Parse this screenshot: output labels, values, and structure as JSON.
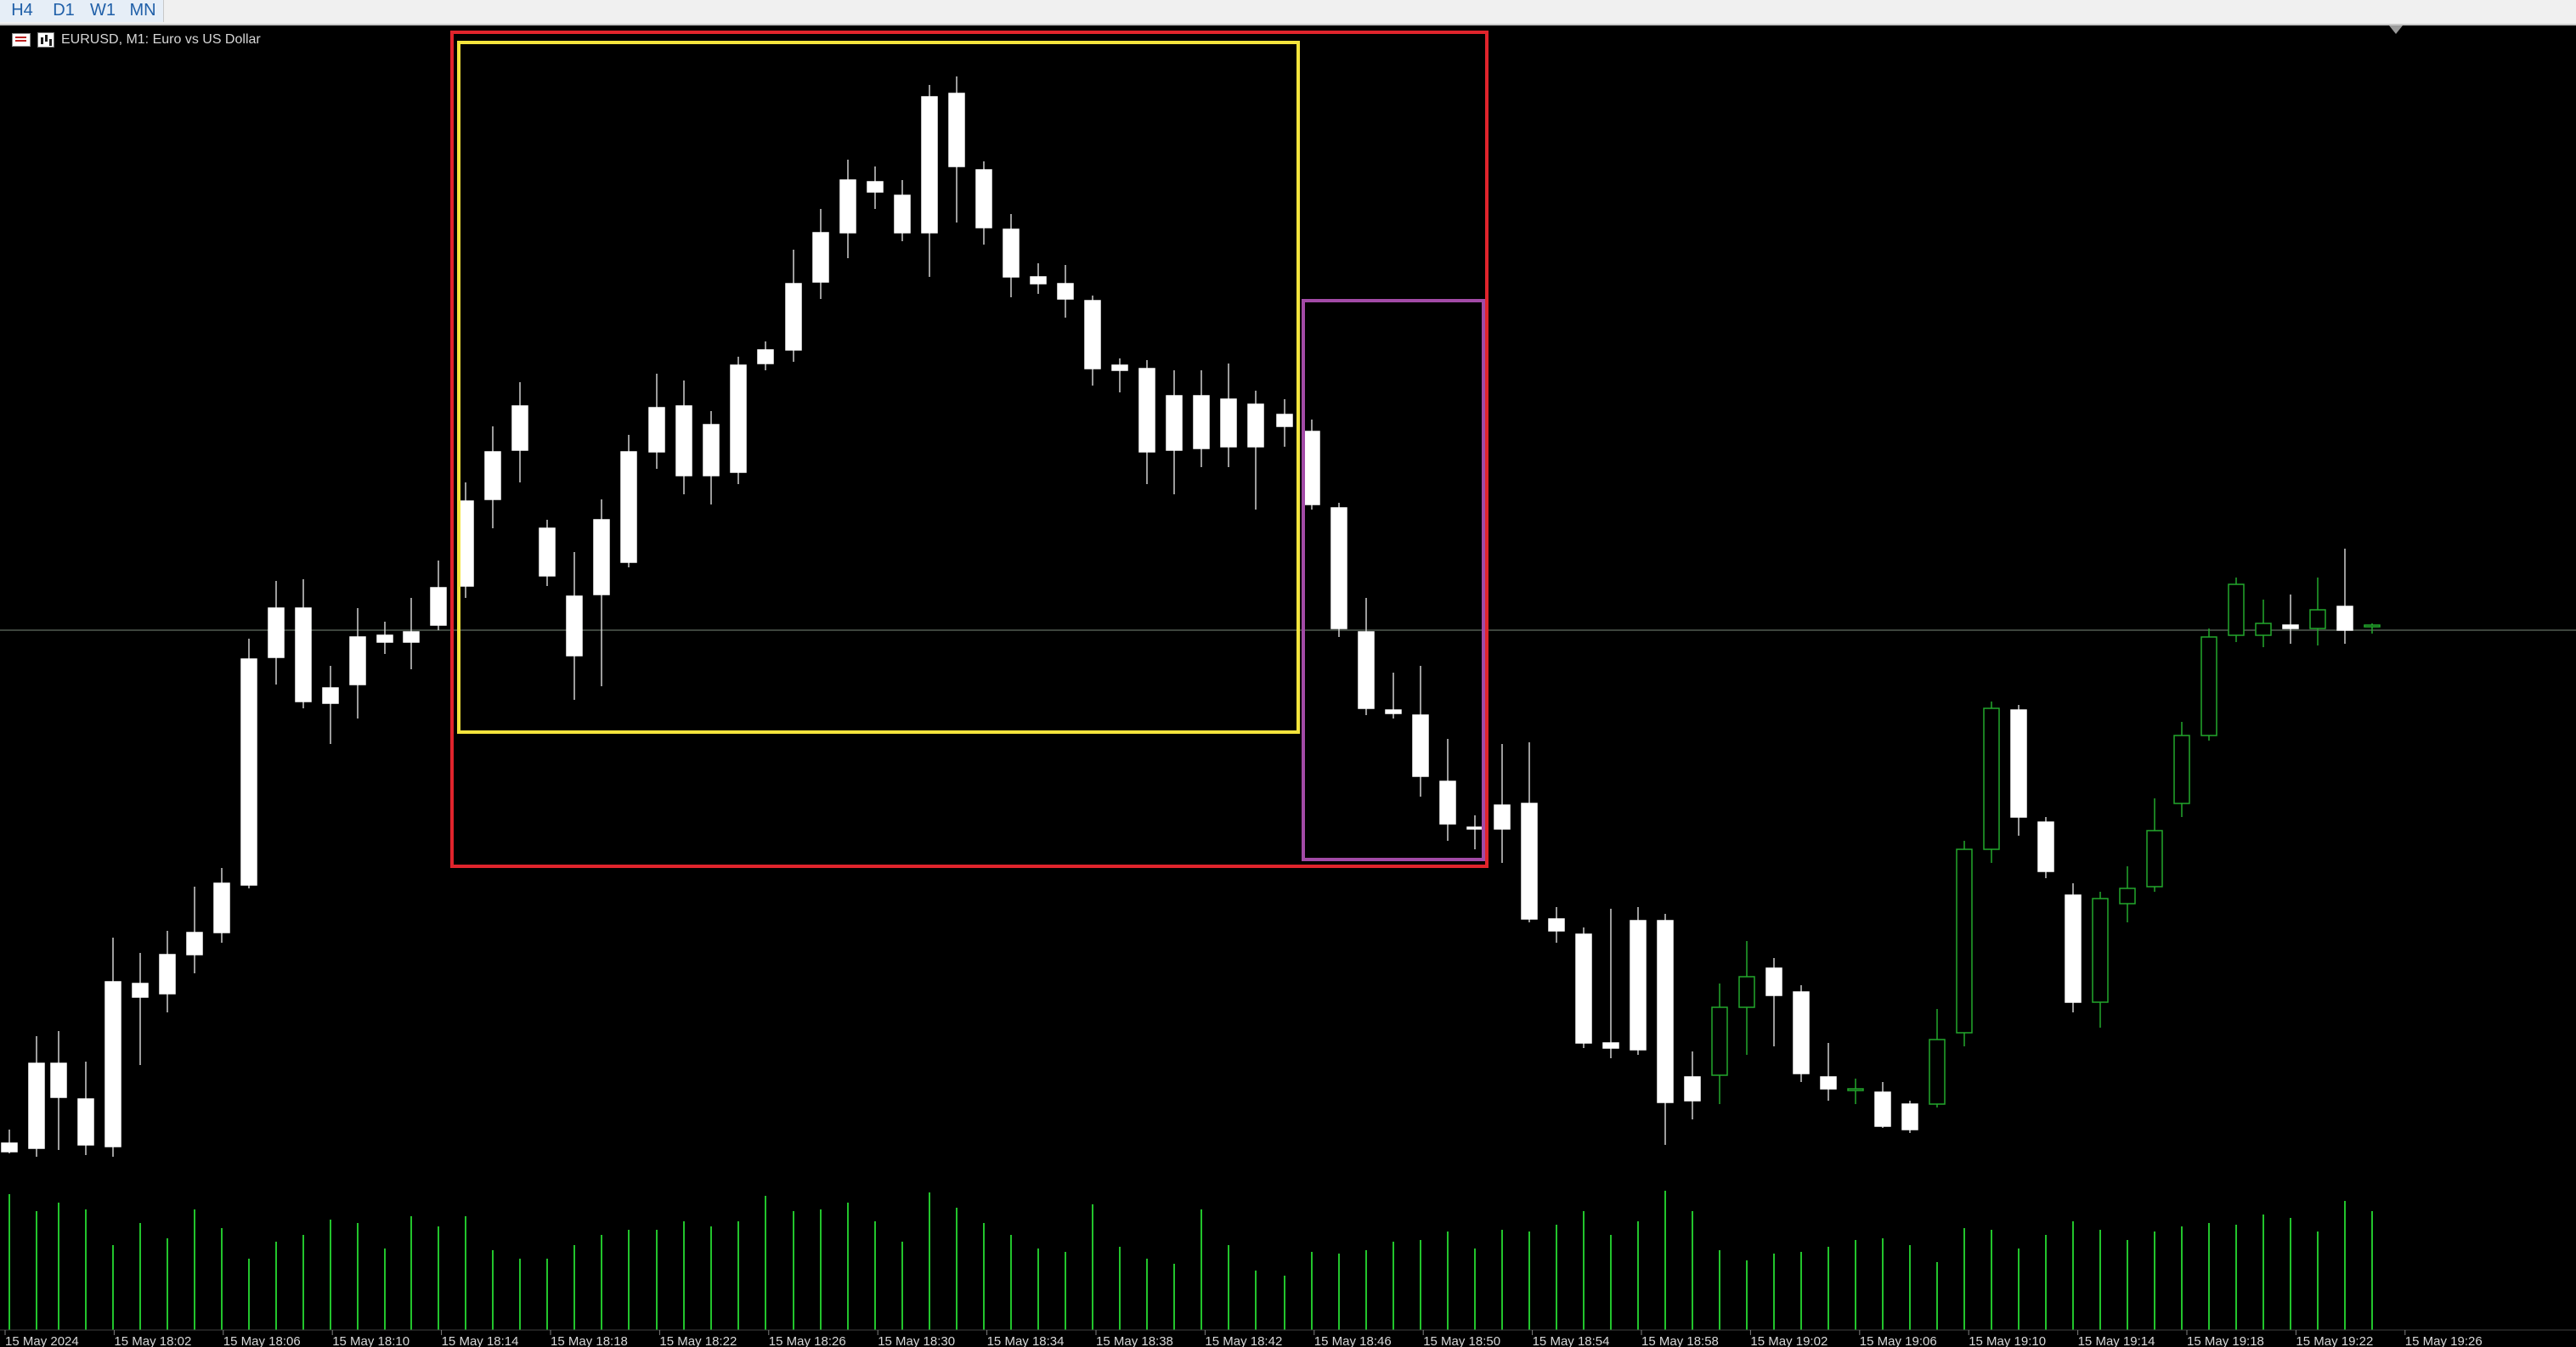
{
  "toolbar": {
    "timeframes": [
      {
        "label": "H4"
      },
      {
        "label": "D1"
      },
      {
        "label": "W1"
      },
      {
        "label": "MN"
      }
    ]
  },
  "chart": {
    "title": "EURUSD, M1:  Euro vs US Dollar",
    "colors": {
      "background": "#000000",
      "bull_candle": "#22a82c",
      "bear_candle": "#ffffff",
      "volume": "#22c42c",
      "price_line": "#7a8a7a",
      "box_red": "#e0242c",
      "box_yellow": "#f4e43c",
      "box_purple": "#a24aa6",
      "axis_text": "#d8d8d8"
    },
    "time_labels": [
      "15 May 2024",
      "15 May 18:02",
      "15 May 18:06",
      "15 May 18:10",
      "15 May 18:14",
      "15 May 18:18",
      "15 May 18:22",
      "15 May 18:26",
      "15 May 18:30",
      "15 May 18:34",
      "15 May 18:38",
      "15 May 18:42",
      "15 May 18:46",
      "15 May 18:50",
      "15 May 18:54",
      "15 May 18:58",
      "15 May 19:02",
      "15 May 19:06",
      "15 May 19:10",
      "15 May 19:14",
      "15 May 19:18",
      "15 May 19:22",
      "15 May 19:26"
    ]
  }
}
